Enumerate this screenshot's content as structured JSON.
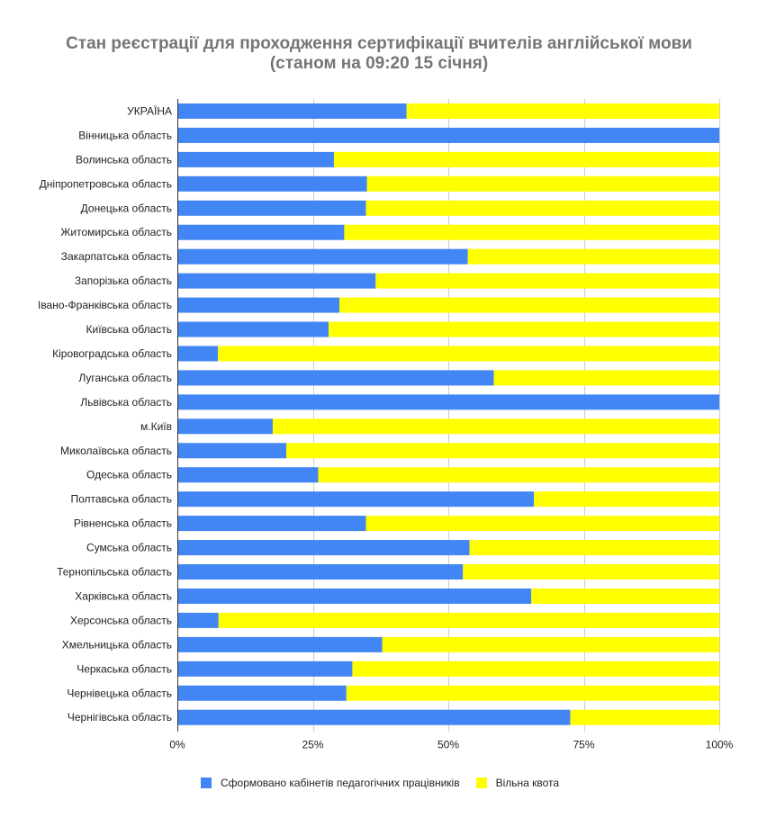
{
  "chart_data": {
    "type": "bar",
    "orientation": "horizontal",
    "stacked": "percent",
    "title": "Стан реєстрації для проходження сертифікації вчителів англійської мови",
    "subtitle": "(станом на 09:20 15 січня)",
    "xlabel": "",
    "ylabel": "",
    "xlim": [
      0,
      100
    ],
    "grid": true,
    "legend_position": "bottom",
    "x_ticks": [
      "0%",
      "25%",
      "50%",
      "75%",
      "100%"
    ],
    "x_tick_values": [
      0,
      25,
      50,
      75,
      100
    ],
    "categories": [
      "УКРАЇНА",
      "Вінницька область",
      "Волинська область",
      "Дніпропетровська область",
      "Донецька область",
      "Житомирська область",
      "Закарпатська область",
      "Запорізька область",
      "Івано-Франківська область",
      "Київська область",
      "Кіровоградська область",
      "Луганська область",
      "Львівська область",
      "м.Київ",
      "Миколаївська область",
      "Одеська область",
      "Полтавська область",
      "Рівненська область",
      "Сумська область",
      "Тернопільська область",
      "Харківська область",
      "Херсонська область",
      "Хмельницька область",
      "Черкаська область",
      "Чернівецька область",
      "Чернігівська область"
    ],
    "series": [
      {
        "name": "Сформовано кабінетів педагогічних працівників",
        "color": "#4285f4",
        "values": [
          42.3,
          100,
          28.9,
          35.0,
          34.8,
          30.8,
          53.6,
          36.6,
          29.9,
          27.9,
          7.5,
          58.4,
          100,
          17.6,
          20.1,
          26.0,
          65.8,
          34.8,
          53.9,
          52.7,
          65.3,
          7.6,
          37.8,
          32.3,
          31.2,
          72.5
        ]
      },
      {
        "name": "Вільна квота",
        "color": "#ffff00",
        "values": [
          57.7,
          0,
          71.1,
          65.0,
          65.2,
          69.2,
          46.4,
          63.4,
          70.1,
          72.1,
          92.5,
          41.6,
          0,
          82.4,
          79.9,
          74.0,
          34.2,
          65.2,
          46.1,
          47.3,
          34.7,
          92.4,
          62.2,
          67.7,
          68.8,
          27.5
        ]
      }
    ]
  }
}
